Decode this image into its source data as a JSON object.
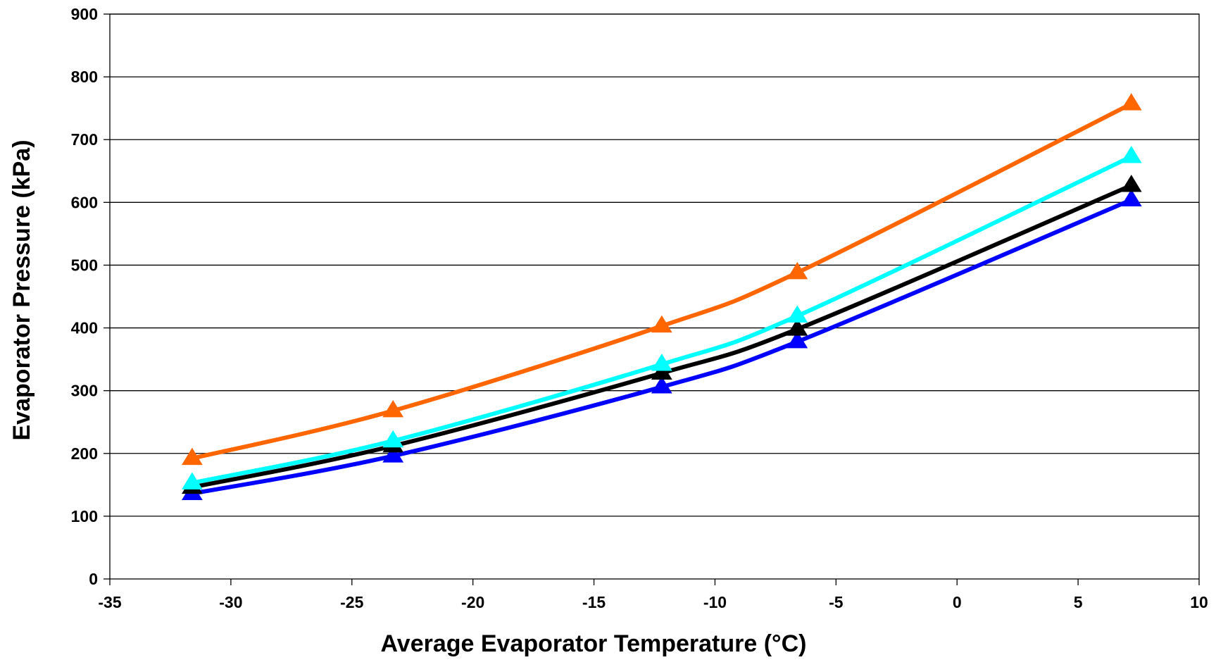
{
  "chart_data": {
    "type": "line",
    "title": "",
    "xlabel": "Average Evaporator Temperature (°C)",
    "ylabel": "Evaporator Pressure (kPa)",
    "xlim": [
      -35,
      10
    ],
    "ylim": [
      0,
      900
    ],
    "x_ticks": [
      -35,
      -30,
      -25,
      -20,
      -15,
      -10,
      -5,
      0,
      5,
      10
    ],
    "y_ticks": [
      0,
      100,
      200,
      300,
      400,
      500,
      600,
      700,
      800,
      900
    ],
    "grid": "horizontal",
    "legend": "none",
    "marker": "triangle",
    "x": [
      -31.6,
      -23.3,
      -12.2,
      -6.6,
      7.2
    ],
    "series": [
      {
        "color": "#FF6600",
        "values": [
          192,
          268,
          403,
          488,
          757
        ]
      },
      {
        "color": "#00FFFF",
        "values": [
          153,
          220,
          342,
          419,
          673
        ]
      },
      {
        "color": "#000000",
        "values": [
          146,
          212,
          328,
          398,
          627
        ]
      },
      {
        "color": "#0000FF",
        "values": [
          136,
          196,
          306,
          378,
          604
        ]
      }
    ]
  }
}
